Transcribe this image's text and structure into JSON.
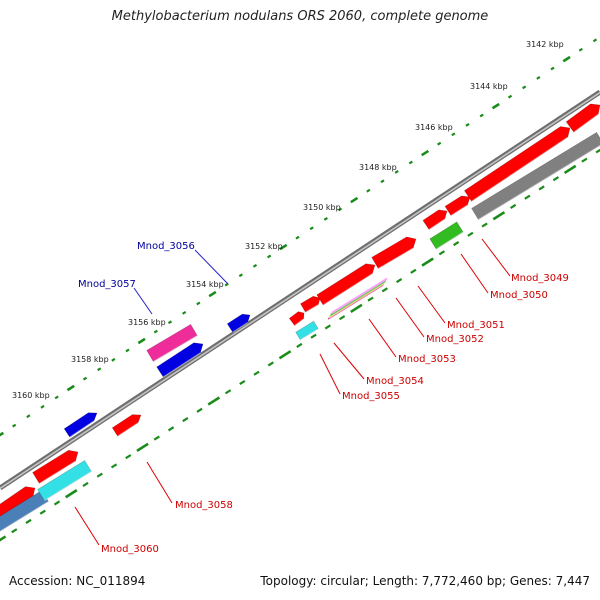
{
  "title": "Methylobacterium nodulans ORS 2060, complete genome",
  "accession": "Accession: NC_011894",
  "topology": "Topology: circular; Length: 7,772,460 bp; Genes: 7,447",
  "colors": {
    "backbone": "#808080",
    "tick": "#1a8c1a",
    "forward_gene": "#ff0000",
    "reverse_gene": "#0000e0",
    "cds_gray": "#808080",
    "rna_green": "#33bb22",
    "cyan": "#33e0e6",
    "magenta": "#ee2d9a",
    "steelblue": "#4b7fb8",
    "label_forward": "#cc0000",
    "label_reverse": "#000099"
  },
  "scale_labels": [
    "3142 kbp",
    "3144 kbp",
    "3146 kbp",
    "3148 kbp",
    "3150 kbp",
    "3152 kbp",
    "3154 kbp",
    "3156 kbp",
    "3158 kbp",
    "3160 kbp"
  ],
  "gene_labels": [
    {
      "id": "Mnod_3056",
      "strand": "reverse"
    },
    {
      "id": "Mnod_3057",
      "strand": "reverse"
    },
    {
      "id": "Mnod_3049",
      "strand": "forward"
    },
    {
      "id": "Mnod_3050",
      "strand": "forward"
    },
    {
      "id": "Mnod_3051",
      "strand": "forward"
    },
    {
      "id": "Mnod_3052",
      "strand": "forward"
    },
    {
      "id": "Mnod_3053",
      "strand": "forward"
    },
    {
      "id": "Mnod_3054",
      "strand": "forward"
    },
    {
      "id": "Mnod_3055",
      "strand": "forward"
    },
    {
      "id": "Mnod_3058",
      "strand": "forward"
    },
    {
      "id": "Mnod_3060",
      "strand": "forward"
    }
  ]
}
